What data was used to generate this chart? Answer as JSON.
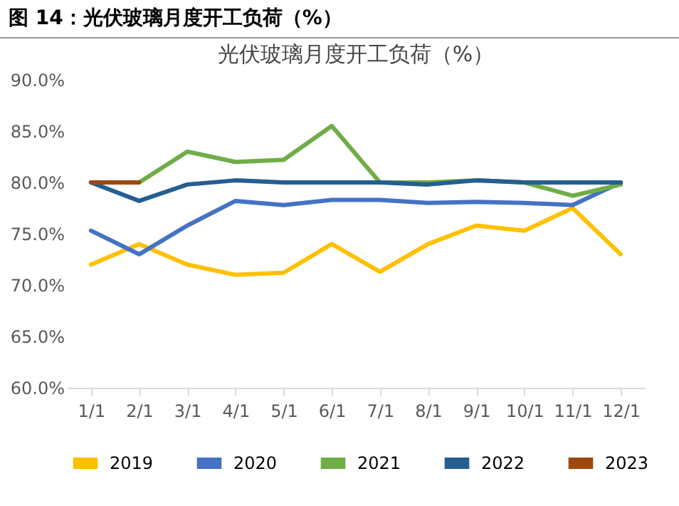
{
  "chart_data": {
    "type": "line",
    "title": "光伏玻璃月度开工负荷（%）",
    "annotations": [
      "图 14：光伏玻璃月度开工负荷（%）"
    ],
    "categories": [
      "1/1",
      "2/1",
      "3/1",
      "4/1",
      "5/1",
      "6/1",
      "7/1",
      "8/1",
      "9/1",
      "10/1",
      "11/1",
      "12/1"
    ],
    "series": [
      {
        "name": "2019",
        "color": "#ffc000",
        "values": [
          72,
          74,
          72,
          71,
          71.2,
          74,
          71.3,
          74,
          75.8,
          75.3,
          77.5,
          73
        ]
      },
      {
        "name": "2020",
        "color": "#4472c4",
        "values": [
          75.3,
          73,
          75.8,
          78.2,
          77.8,
          78.3,
          78.3,
          78,
          78.1,
          78,
          77.8,
          80
        ]
      },
      {
        "name": "2021",
        "color": "#70ad47",
        "values": [
          null,
          80,
          83,
          82,
          82.2,
          85.5,
          80,
          80,
          80.2,
          80,
          78.7,
          79.8
        ]
      },
      {
        "name": "2022",
        "color": "#255e91",
        "values": [
          80,
          78.2,
          79.8,
          80.2,
          80,
          80,
          80,
          79.8,
          80.2,
          80,
          80,
          80
        ]
      },
      {
        "name": "2023",
        "color": "#9e480e",
        "values": [
          80,
          80,
          null,
          null,
          null,
          null,
          null,
          null,
          null,
          null,
          null,
          null
        ]
      }
    ],
    "ylim": [
      60,
      90
    ],
    "yticks": [
      {
        "value": 60,
        "label": "60.0%"
      },
      {
        "value": 65,
        "label": "65.0%"
      },
      {
        "value": 70,
        "label": "70.0%"
      },
      {
        "value": 75,
        "label": "75.0%"
      },
      {
        "value": 80,
        "label": "80.0%"
      },
      {
        "value": 85,
        "label": "85.0%"
      },
      {
        "value": 90,
        "label": "90.0%"
      }
    ],
    "grid": false,
    "legend": "bottom",
    "marker": "none",
    "line_style": "solid"
  }
}
